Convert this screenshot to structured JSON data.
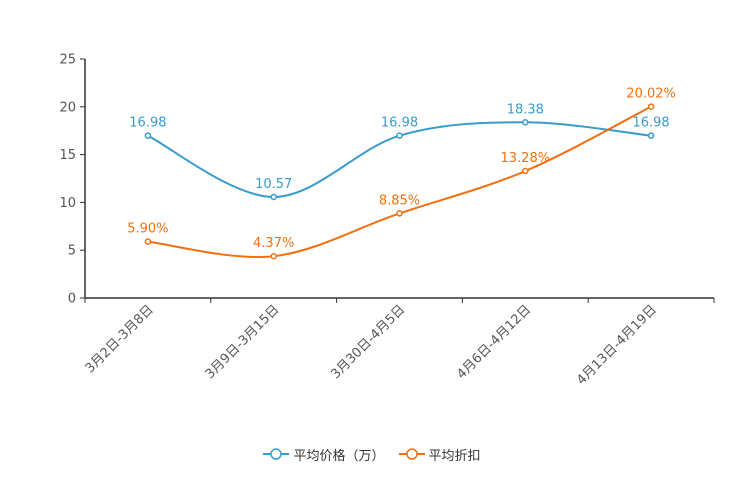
{
  "chart_data": {
    "type": "line",
    "title": "",
    "xlabel": "",
    "ylabel": "",
    "ylim": [
      0,
      25
    ],
    "yticks": [
      0,
      5,
      10,
      15,
      20,
      25
    ],
    "categories": [
      "3月2日-3月8日",
      "3月9日-3月15日",
      "3月30日-4月5日",
      "4月6日-4月12日",
      "4月13日-4月19日"
    ],
    "series": [
      {
        "name": "平均价格（万）",
        "color": "#3a9ccb",
        "values": [
          16.98,
          10.57,
          16.98,
          18.38,
          16.98
        ],
        "labels": [
          "16.98",
          "10.57",
          "16.98",
          "18.38",
          "16.98"
        ]
      },
      {
        "name": "平均折扣",
        "color": "#f2700f",
        "values": [
          5.9,
          4.37,
          8.85,
          13.28,
          20.02
        ],
        "labels": [
          "5.90%",
          "4.37%",
          "8.85%",
          "13.28%",
          "20.02%"
        ]
      }
    ],
    "legend_position": "bottom",
    "grid": false
  }
}
